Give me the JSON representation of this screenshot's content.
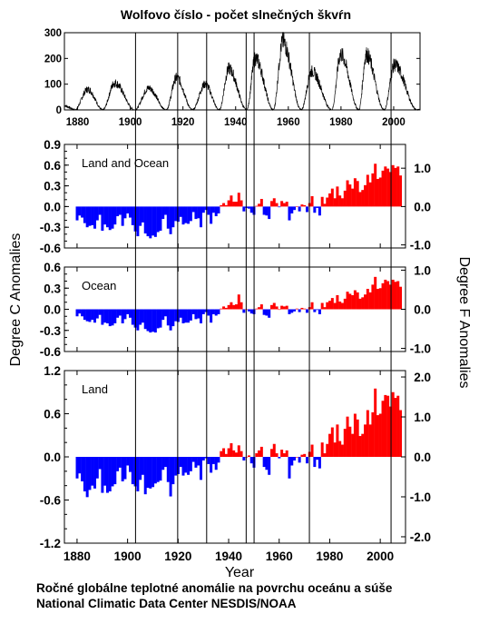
{
  "sunspot": {
    "title": "Wolfovo číslo - počet slnečných škvŕn",
    "type": "line",
    "ylim": [
      0,
      300
    ],
    "yticks": [
      "0",
      "100",
      "200",
      "300"
    ],
    "xticks": [
      "1880",
      "1900",
      "1920",
      "1940",
      "1960",
      "1980",
      "2000"
    ],
    "cycles": [
      {
        "min_year": 1878.9,
        "max_year": 1883.9,
        "max_value": 80
      },
      {
        "min_year": 1889.6,
        "max_year": 1894.1,
        "max_value": 105
      },
      {
        "min_year": 1901.7,
        "max_year": 1907.0,
        "max_value": 85
      },
      {
        "min_year": 1913.6,
        "max_year": 1917.6,
        "max_value": 125
      },
      {
        "min_year": 1923.6,
        "max_year": 1928.4,
        "max_value": 100
      },
      {
        "min_year": 1933.8,
        "max_year": 1937.4,
        "max_value": 160
      },
      {
        "min_year": 1944.2,
        "max_year": 1947.5,
        "max_value": 200
      },
      {
        "min_year": 1954.3,
        "max_year": 1957.9,
        "max_value": 265
      },
      {
        "min_year": 1964.9,
        "max_year": 1968.9,
        "max_value": 150
      },
      {
        "min_year": 1976.5,
        "max_year": 1979.9,
        "max_value": 215
      },
      {
        "min_year": 1986.8,
        "max_year": 1989.6,
        "max_value": 215
      },
      {
        "min_year": 1996.4,
        "max_year": 2000.3,
        "max_value": 175
      },
      {
        "min_year": 2008.9,
        "max_year": 2008.9,
        "max_value": 0
      }
    ]
  },
  "anomaly_panels": [
    {
      "label": "Land and Ocean",
      "ylim": [
        -0.6,
        0.9
      ],
      "yticks": [
        "0.9",
        "0.6",
        "0.3",
        "0.0",
        "-0.3",
        "-0.6"
      ],
      "ftick_values": [
        1.0,
        0.0,
        -1.0
      ],
      "fticks": [
        "1.0",
        "0.0",
        "-1.0"
      ]
    },
    {
      "label": "Ocean",
      "ylim": [
        -0.6,
        0.6
      ],
      "yticks": [
        "0.6",
        "0.3",
        "0.0",
        "-0.3",
        "-0.6"
      ],
      "ftick_values": [
        1.0,
        0.0,
        -1.0
      ],
      "fticks": [
        "1.0",
        "0.0",
        "-1.0"
      ]
    },
    {
      "label": "Land",
      "ylim": [
        -1.2,
        1.2
      ],
      "yticks": [
        "1.2",
        "0.6",
        "0.0",
        "-0.6",
        "-1.2"
      ],
      "ftick_values": [
        2.0,
        1.0,
        0.0,
        -1.0,
        -2.0
      ],
      "fticks": [
        "2.0",
        "1.0",
        "0.0",
        "-1.0",
        "-2.0"
      ]
    }
  ],
  "chart_data": [
    {
      "type": "bar",
      "panel": "Land and Ocean",
      "years_from": 1880,
      "values": [
        -0.2,
        -0.13,
        -0.16,
        -0.24,
        -0.3,
        -0.28,
        -0.27,
        -0.32,
        -0.2,
        -0.12,
        -0.35,
        -0.26,
        -0.3,
        -0.34,
        -0.32,
        -0.26,
        -0.14,
        -0.12,
        -0.28,
        -0.17,
        -0.1,
        -0.16,
        -0.27,
        -0.36,
        -0.43,
        -0.28,
        -0.23,
        -0.39,
        -0.43,
        -0.46,
        -0.42,
        -0.44,
        -0.37,
        -0.35,
        -0.18,
        -0.12,
        -0.32,
        -0.4,
        -0.3,
        -0.21,
        -0.22,
        -0.15,
        -0.26,
        -0.24,
        -0.25,
        -0.21,
        -0.08,
        -0.18,
        -0.17,
        -0.3,
        -0.09,
        -0.05,
        -0.12,
        -0.25,
        -0.09,
        -0.14,
        -0.1,
        0.02,
        0.05,
        0.02,
        0.09,
        0.16,
        0.07,
        0.07,
        0.2,
        0.09,
        -0.07,
        -0.02,
        -0.03,
        -0.09,
        -0.12,
        0.01,
        0.04,
        0.11,
        -0.12,
        -0.13,
        -0.18,
        0.08,
        0.12,
        0.05,
        -0.01,
        0.08,
        0.05,
        0.07,
        -0.2,
        -0.1,
        -0.05,
        0.0,
        -0.07,
        0.03,
        0.02,
        -0.08,
        0.05,
        0.15,
        -0.09,
        -0.02,
        -0.13,
        0.14,
        0.04,
        0.13,
        0.19,
        0.26,
        0.12,
        0.29,
        0.16,
        0.12,
        0.23,
        0.38,
        0.32,
        0.26,
        0.41,
        0.37,
        0.21,
        0.24,
        0.31,
        0.46,
        0.35,
        0.48,
        0.62,
        0.4,
        0.42,
        0.52,
        0.58,
        0.55,
        0.5,
        0.6,
        0.56,
        0.58,
        0.45
      ]
    },
    {
      "type": "bar",
      "panel": "Ocean",
      "years_from": 1880,
      "values": [
        -0.1,
        -0.06,
        -0.1,
        -0.15,
        -0.17,
        -0.18,
        -0.15,
        -0.19,
        -0.13,
        -0.08,
        -0.22,
        -0.19,
        -0.2,
        -0.24,
        -0.23,
        -0.2,
        -0.12,
        -0.09,
        -0.2,
        -0.14,
        -0.07,
        -0.12,
        -0.22,
        -0.26,
        -0.3,
        -0.22,
        -0.19,
        -0.28,
        -0.31,
        -0.33,
        -0.32,
        -0.33,
        -0.27,
        -0.26,
        -0.15,
        -0.1,
        -0.23,
        -0.3,
        -0.24,
        -0.17,
        -0.18,
        -0.12,
        -0.2,
        -0.19,
        -0.19,
        -0.16,
        -0.07,
        -0.14,
        -0.13,
        -0.2,
        -0.07,
        -0.04,
        -0.09,
        -0.19,
        -0.07,
        -0.09,
        -0.07,
        0.01,
        0.04,
        0.02,
        0.06,
        0.1,
        0.06,
        0.07,
        0.21,
        0.1,
        -0.05,
        0.0,
        -0.03,
        -0.06,
        -0.07,
        0.01,
        0.03,
        0.07,
        -0.08,
        -0.09,
        -0.12,
        0.06,
        0.09,
        0.04,
        0.0,
        0.05,
        0.04,
        0.05,
        -0.07,
        -0.05,
        -0.03,
        0.01,
        -0.04,
        0.02,
        0.01,
        -0.05,
        0.03,
        0.1,
        -0.04,
        -0.01,
        -0.07,
        0.09,
        0.03,
        0.1,
        0.12,
        0.16,
        0.09,
        0.2,
        0.11,
        0.09,
        0.15,
        0.25,
        0.22,
        0.2,
        0.27,
        0.24,
        0.15,
        0.17,
        0.21,
        0.29,
        0.24,
        0.35,
        0.46,
        0.29,
        0.3,
        0.37,
        0.42,
        0.4,
        0.35,
        0.42,
        0.39,
        0.4,
        0.32
      ]
    },
    {
      "type": "bar",
      "panel": "Land",
      "years_from": 1880,
      "values": [
        -0.3,
        -0.23,
        -0.34,
        -0.48,
        -0.56,
        -0.46,
        -0.4,
        -0.44,
        -0.3,
        -0.17,
        -0.5,
        -0.4,
        -0.5,
        -0.48,
        -0.41,
        -0.38,
        -0.2,
        -0.15,
        -0.34,
        -0.31,
        -0.12,
        -0.21,
        -0.38,
        -0.41,
        -0.48,
        -0.32,
        -0.25,
        -0.52,
        -0.43,
        -0.44,
        -0.42,
        -0.37,
        -0.35,
        -0.33,
        -0.18,
        -0.14,
        -0.35,
        -0.55,
        -0.38,
        -0.26,
        -0.24,
        -0.14,
        -0.26,
        -0.22,
        -0.25,
        -0.2,
        -0.07,
        -0.15,
        -0.12,
        -0.32,
        -0.05,
        -0.02,
        -0.1,
        -0.22,
        -0.1,
        -0.18,
        -0.08,
        0.08,
        0.12,
        0.04,
        0.12,
        0.19,
        0.09,
        0.06,
        0.16,
        0.08,
        -0.05,
        0.0,
        0.02,
        -0.09,
        -0.15,
        0.05,
        0.09,
        0.14,
        -0.14,
        -0.18,
        -0.25,
        0.11,
        0.18,
        0.05,
        -0.02,
        0.1,
        0.05,
        0.09,
        -0.3,
        -0.12,
        -0.05,
        0.0,
        -0.08,
        0.03,
        0.04,
        -0.09,
        0.07,
        0.17,
        -0.14,
        -0.04,
        -0.16,
        0.2,
        0.05,
        0.18,
        0.32,
        0.41,
        0.2,
        0.45,
        0.22,
        0.17,
        0.39,
        0.56,
        0.42,
        0.32,
        0.6,
        0.52,
        0.29,
        0.32,
        0.45,
        0.65,
        0.45,
        0.62,
        0.95,
        0.58,
        0.6,
        0.78,
        0.86,
        0.85,
        0.7,
        0.9,
        0.82,
        0.85,
        0.65
      ]
    }
  ],
  "x_axis": {
    "label": "Year",
    "ticks": [
      "1880",
      "1900",
      "1920",
      "1940",
      "1960",
      "1980",
      "2000"
    ]
  },
  "y_axis_left": {
    "label": "Degree C Anomalies"
  },
  "y_axis_right": {
    "label": "Degree F Anomalies"
  },
  "vertical_lines_years": [
    1902,
    1918,
    1929,
    1944,
    1947,
    1968,
    1999
  ],
  "caption": {
    "line1": "Ročné globálne teplotné anomálie na povrchu oceánu a súše",
    "line2": "National Climatic Data Center NESDIS/NOAA"
  },
  "colors": {
    "positive": "#ff0000",
    "negative": "#0000ff",
    "axis": "#000000",
    "background": "#ffffff"
  }
}
